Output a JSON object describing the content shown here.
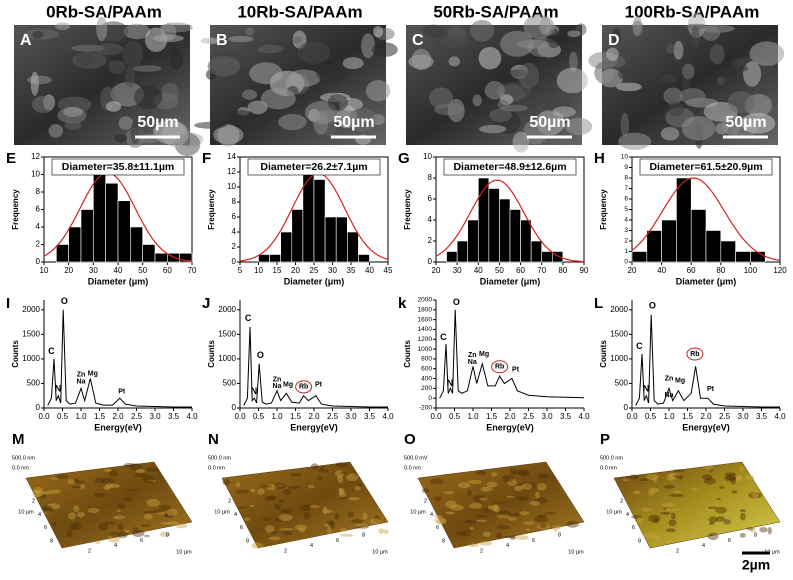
{
  "sem_panels": [
    {
      "panel": "A",
      "title": "0Rb-SA/PAAm",
      "scale": "50µm"
    },
    {
      "panel": "B",
      "title": "10Rb-SA/PAAm",
      "scale": "50µm"
    },
    {
      "panel": "C",
      "title": "50Rb-SA/PAAm",
      "scale": "50µm"
    },
    {
      "panel": "D",
      "title": "100Rb-SA/PAAm",
      "scale": "50µm"
    }
  ],
  "chart_data": [
    {
      "type": "histogram",
      "panel": "E",
      "annotation": "Diameter=35.8±11.1µm",
      "xlabel": "Diameter  (μm)",
      "ylabel": "Frequency",
      "color": "#000000",
      "bins": [
        15,
        20,
        25,
        30,
        35,
        40,
        45,
        50,
        55,
        60,
        65,
        70
      ],
      "values": [
        2,
        4,
        6,
        11,
        9,
        7,
        4,
        2,
        1,
        1,
        1
      ],
      "fit": {
        "mean": 35.8,
        "sd": 11.1,
        "peak": 10.2,
        "color": "#d62020"
      },
      "xlim": [
        10,
        70
      ],
      "xticks": [
        10,
        20,
        30,
        40,
        50,
        60,
        70
      ],
      "ylim": [
        0,
        12
      ],
      "yticks": [
        0,
        2,
        4,
        6,
        8,
        10,
        12
      ]
    },
    {
      "type": "histogram",
      "panel": "F",
      "annotation": "Diameter=26.2±7.1µm",
      "xlabel": "Diameter  (μm)",
      "ylabel": "Frequency",
      "color": "#000000",
      "bins": [
        10,
        13,
        16,
        19,
        22,
        25,
        28,
        31,
        34,
        37,
        40
      ],
      "values": [
        1,
        1,
        4,
        7,
        12,
        11,
        6,
        6,
        4,
        1
      ],
      "fit": {
        "mean": 26.2,
        "sd": 7.1,
        "peak": 11.8,
        "color": "#d62020"
      },
      "xlim": [
        5,
        45
      ],
      "xticks": [
        5,
        10,
        15,
        20,
        25,
        30,
        35,
        40,
        45
      ],
      "ylim": [
        0,
        14
      ],
      "yticks": [
        0,
        2,
        4,
        6,
        8,
        10,
        12,
        14
      ]
    },
    {
      "type": "histogram",
      "panel": "G",
      "annotation": "Diameter=48.9±12.6µm",
      "xlabel": "Diameter  (μm)",
      "ylabel": "Frequency",
      "color": "#000000",
      "bins": [
        25,
        30,
        35,
        40,
        45,
        50,
        55,
        60,
        65,
        70,
        75,
        80
      ],
      "values": [
        1,
        2,
        4,
        8,
        7,
        6,
        5,
        4,
        2,
        1,
        1
      ],
      "fit": {
        "mean": 48.9,
        "sd": 12.6,
        "peak": 7.8,
        "color": "#d62020"
      },
      "xlim": [
        20,
        90
      ],
      "xticks": [
        20,
        30,
        40,
        50,
        60,
        70,
        80,
        90
      ],
      "ylim": [
        0,
        10
      ],
      "yticks": [
        0,
        2,
        4,
        6,
        8,
        10
      ]
    },
    {
      "type": "histogram",
      "panel": "H",
      "annotation": "Diameter=61.5±20.9µm",
      "xlabel": "Diameter  (μm)",
      "ylabel": "Frequency",
      "color": "#000000",
      "bins": [
        20,
        30,
        40,
        50,
        60,
        70,
        80,
        90,
        100,
        110
      ],
      "values": [
        1,
        3,
        4,
        8,
        5,
        3,
        2,
        1,
        1
      ],
      "fit": {
        "mean": 61.5,
        "sd": 20.9,
        "peak": 8,
        "color": "#d62020"
      },
      "xlim": [
        20,
        120
      ],
      "xticks": [
        20,
        40,
        60,
        80,
        100,
        120
      ],
      "ylim": [
        0,
        10
      ],
      "yticks": [
        0,
        1,
        2,
        3,
        4,
        5,
        6,
        7,
        8,
        9,
        10
      ]
    },
    {
      "type": "line",
      "panel": "I",
      "xlabel": "Energy(eV)",
      "ylabel": "Counts",
      "color": "#000000",
      "x": [
        0.1,
        0.2,
        0.27,
        0.33,
        0.39,
        0.45,
        0.52,
        0.6,
        0.7,
        0.85,
        1.0,
        1.1,
        1.25,
        1.4,
        1.6,
        1.72,
        1.85,
        2.05,
        2.2,
        2.5,
        3.0,
        3.5,
        4.0
      ],
      "values": [
        50,
        200,
        1000,
        150,
        250,
        100,
        2000,
        150,
        80,
        100,
        400,
        150,
        600,
        100,
        60,
        60,
        60,
        200,
        80,
        40,
        30,
        20,
        20
      ],
      "annotations": [
        {
          "text": "C",
          "x": 0.2,
          "y": 1150
        },
        {
          "text": "O",
          "x": 0.55,
          "y": 2170
        },
        {
          "text": "N",
          "x": 0.38,
          "y": 380
        },
        {
          "text": "Zn",
          "x": 1.0,
          "y": 680
        },
        {
          "text": "Na",
          "x": 1.0,
          "y": 540
        },
        {
          "text": "Mg",
          "x": 1.32,
          "y": 700
        },
        {
          "text": "Pt",
          "x": 2.1,
          "y": 330
        }
      ],
      "xlim": [
        0,
        4
      ],
      "xticks": [
        {
          "value": 0,
          "label": "0.0"
        },
        {
          "value": 0.5,
          "label": "0.5"
        },
        {
          "value": 1,
          "label": "1.0"
        },
        {
          "value": 1.5,
          "label": "1.5"
        },
        {
          "value": 2,
          "label": "2.0"
        },
        {
          "value": 2.5,
          "label": "2.5"
        },
        {
          "value": 3,
          "label": "3.0"
        },
        {
          "value": 3.5,
          "label": "3.5"
        },
        {
          "value": 4,
          "label": "4.0"
        }
      ],
      "ylim": [
        0,
        2200
      ],
      "yticks": [
        0,
        500,
        1000,
        1500,
        2000
      ]
    },
    {
      "type": "line",
      "panel": "J",
      "xlabel": "Energy(eV)",
      "ylabel": "Counts",
      "color": "#000000",
      "x": [
        0.1,
        0.2,
        0.27,
        0.33,
        0.39,
        0.45,
        0.52,
        0.6,
        0.7,
        0.85,
        1.0,
        1.1,
        1.25,
        1.4,
        1.6,
        1.72,
        1.85,
        2.05,
        2.2,
        2.5,
        3.0,
        3.5,
        4.0
      ],
      "values": [
        50,
        200,
        1650,
        150,
        200,
        100,
        900,
        120,
        80,
        100,
        350,
        150,
        300,
        120,
        100,
        250,
        150,
        250,
        80,
        40,
        30,
        20,
        20
      ],
      "annotations": [
        {
          "text": "C",
          "x": 0.22,
          "y": 1820
        },
        {
          "text": "O",
          "x": 0.55,
          "y": 1070
        },
        {
          "text": "N",
          "x": 0.38,
          "y": 330
        },
        {
          "text": "Zn",
          "x": 1.0,
          "y": 580
        },
        {
          "text": "Na",
          "x": 1.0,
          "y": 440
        },
        {
          "text": "Mg",
          "x": 1.3,
          "y": 480
        },
        {
          "text": "Rb",
          "x": 1.72,
          "y": 430,
          "circled": true
        },
        {
          "text": "Pt",
          "x": 2.12,
          "y": 480
        }
      ],
      "xlim": [
        0,
        4
      ],
      "xticks": [
        {
          "value": 0,
          "label": "0.0"
        },
        {
          "value": 0.5,
          "label": "0.5"
        },
        {
          "value": 1,
          "label": "1.0"
        },
        {
          "value": 1.5,
          "label": "1.5"
        },
        {
          "value": 2,
          "label": "2.0"
        },
        {
          "value": 2.5,
          "label": "2.5"
        },
        {
          "value": 3,
          "label": "3.0"
        },
        {
          "value": 3.5,
          "label": "3.5"
        },
        {
          "value": 4,
          "label": "4.0"
        }
      ],
      "ylim": [
        0,
        2200
      ],
      "yticks": [
        0,
        500,
        1000,
        1500,
        2000
      ]
    },
    {
      "type": "line",
      "panel": "k",
      "xlabel": "Energy(eV)",
      "ylabel": "Counts",
      "color": "#000000",
      "x": [
        0.1,
        0.2,
        0.27,
        0.33,
        0.39,
        0.45,
        0.52,
        0.6,
        0.7,
        0.85,
        1.0,
        1.1,
        1.25,
        1.4,
        1.6,
        1.72,
        1.85,
        2.05,
        2.2,
        2.5,
        3.0,
        3.5,
        4.0
      ],
      "values": [
        0,
        150,
        1100,
        100,
        200,
        100,
        1800,
        150,
        100,
        150,
        650,
        300,
        700,
        250,
        250,
        450,
        300,
        400,
        150,
        60,
        30,
        20,
        10
      ],
      "annotations": [
        {
          "text": "C",
          "x": 0.2,
          "y": 1230
        },
        {
          "text": "O",
          "x": 0.55,
          "y": 1950
        },
        {
          "text": "N",
          "x": 0.38,
          "y": 300
        },
        {
          "text": "Zn",
          "x": 0.98,
          "y": 880
        },
        {
          "text": "Na",
          "x": 0.98,
          "y": 730
        },
        {
          "text": "Mg",
          "x": 1.3,
          "y": 900
        },
        {
          "text": "Rb",
          "x": 1.72,
          "y": 640,
          "circled": true
        },
        {
          "text": "Pt",
          "x": 2.15,
          "y": 580
        }
      ],
      "xlim": [
        0,
        4
      ],
      "xticks": [
        {
          "value": 0,
          "label": "0.0"
        },
        {
          "value": 0.5,
          "label": "0.5"
        },
        {
          "value": 1,
          "label": "1.0"
        },
        {
          "value": 1.5,
          "label": "1.5"
        },
        {
          "value": 2,
          "label": "2.0"
        },
        {
          "value": 2.5,
          "label": "2.5"
        },
        {
          "value": 3,
          "label": "3.0"
        },
        {
          "value": 3.5,
          "label": "3.5"
        },
        {
          "value": 4,
          "label": "4.0"
        }
      ],
      "ylim": [
        -200,
        2000
      ],
      "yticks": [
        -200,
        0,
        200,
        400,
        600,
        800,
        1000,
        1200,
        1400,
        1600,
        1800,
        2000
      ]
    },
    {
      "type": "line",
      "panel": "L",
      "xlabel": "Energy(eV)",
      "ylabel": "Counts",
      "color": "#000000",
      "x": [
        0.1,
        0.2,
        0.27,
        0.33,
        0.39,
        0.45,
        0.52,
        0.6,
        0.7,
        0.85,
        1.0,
        1.1,
        1.25,
        1.4,
        1.6,
        1.72,
        1.85,
        2.05,
        2.2,
        2.5,
        3.0,
        3.5,
        4.0
      ],
      "values": [
        50,
        200,
        1100,
        150,
        250,
        100,
        1900,
        150,
        80,
        100,
        400,
        150,
        350,
        150,
        300,
        850,
        200,
        200,
        80,
        40,
        30,
        20,
        20
      ],
      "annotations": [
        {
          "text": "C",
          "x": 0.2,
          "y": 1250
        },
        {
          "text": "O",
          "x": 0.55,
          "y": 2080
        },
        {
          "text": "N",
          "x": 0.38,
          "y": 380
        },
        {
          "text": "Zn",
          "x": 1.0,
          "y": 600
        },
        {
          "text": "Na",
          "x": 1.0,
          "y": 260
        },
        {
          "text": "Mg",
          "x": 1.3,
          "y": 560
        },
        {
          "text": "Rb",
          "x": 1.7,
          "y": 1100,
          "circled": true
        },
        {
          "text": "Pt",
          "x": 2.12,
          "y": 380
        }
      ],
      "xlim": [
        0,
        4
      ],
      "xticks": [
        {
          "value": 0,
          "label": "0.0"
        },
        {
          "value": 0.5,
          "label": "0.5"
        },
        {
          "value": 1,
          "label": "1.0"
        },
        {
          "value": 1.5,
          "label": "1.5"
        },
        {
          "value": 2,
          "label": "2.0"
        },
        {
          "value": 2.5,
          "label": "2.5"
        },
        {
          "value": 3,
          "label": "3.0"
        },
        {
          "value": 3.5,
          "label": "3.5"
        },
        {
          "value": 4,
          "label": "4.0"
        }
      ],
      "ylim": [
        0,
        2200
      ],
      "yticks": [
        0,
        500,
        1000,
        1500,
        2000
      ]
    }
  ],
  "afm_panels": [
    {
      "panel": "M",
      "z_top": "500.0 nm",
      "z_bottom": "0.0 nm",
      "axis_label": "10 µm",
      "ticks": [
        "2",
        "4",
        "6",
        "8"
      ]
    },
    {
      "panel": "N",
      "z_top": "500.0 nm",
      "z_bottom": "0.0 nm",
      "axis_label": "10 µm",
      "ticks": [
        "2",
        "4",
        "6",
        "8"
      ]
    },
    {
      "panel": "O",
      "z_top": "500.0 mV",
      "z_bottom": "0.0 nm",
      "axis_label": "10 µm",
      "ticks": [
        "2",
        "4",
        "6",
        "8"
      ]
    },
    {
      "panel": "P",
      "z_top": "500.0 nm",
      "z_bottom": "0.0 nm",
      "axis_label": "10 µm",
      "ticks": [
        "2",
        "4",
        "6",
        "8"
      ]
    }
  ],
  "scale_bar": "2µm"
}
